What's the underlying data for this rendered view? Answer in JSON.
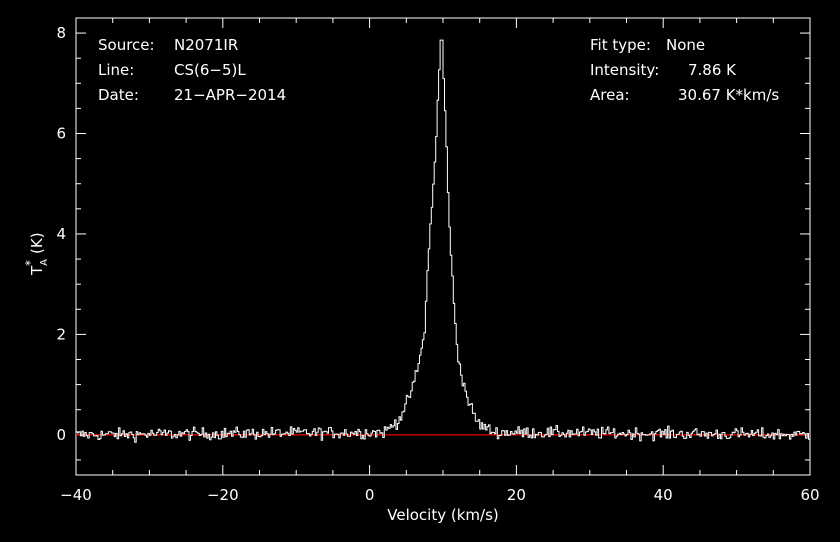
{
  "chart_data": {
    "type": "line",
    "xlabel": "Velocity (km/s)",
    "ylabel_main": "T",
    "ylabel_sup": "*",
    "ylabel_sub": "A",
    "ylabel_unit": "(K)",
    "xlim": [
      -40,
      60
    ],
    "ylim": [
      -0.8,
      8.3
    ],
    "xticks": [
      -40,
      -20,
      0,
      20,
      40,
      60
    ],
    "yticks": [
      0,
      2,
      4,
      6,
      8
    ],
    "grid": false,
    "background": "#000000",
    "line_color": "#ffffff",
    "baseline_color": "#ff0000",
    "baseline_value": 0,
    "info_left": [
      {
        "label": "Source:",
        "value": "N2071IR"
      },
      {
        "label": "Line:",
        "value": "CS(6−5)L"
      },
      {
        "label": "Date:",
        "value": "21−APR−2014"
      }
    ],
    "info_right": [
      {
        "label": "Fit type:",
        "value": "None"
      },
      {
        "label": "Intensity:",
        "value": "7.86 K"
      },
      {
        "label": "Area:",
        "value": "30.67 K*km/s"
      }
    ],
    "series": [
      {
        "channel_width": 0.2,
        "peak_velocity": 9.8,
        "peak_value": 7.86,
        "profile_points": [
          [
            -40,
            0
          ],
          [
            2.0,
            0.05
          ],
          [
            4.0,
            0.3
          ],
          [
            5.0,
            0.6
          ],
          [
            6.0,
            1.0
          ],
          [
            7.0,
            1.6
          ],
          [
            7.5,
            2.1
          ],
          [
            8.0,
            3.5
          ],
          [
            8.5,
            4.6
          ],
          [
            9.0,
            5.6
          ],
          [
            9.4,
            7.0
          ],
          [
            9.8,
            7.86
          ],
          [
            10.2,
            6.8
          ],
          [
            10.6,
            5.3
          ],
          [
            11.0,
            3.8
          ],
          [
            11.5,
            2.6
          ],
          [
            12.0,
            1.6
          ],
          [
            13.0,
            0.9
          ],
          [
            14.0,
            0.45
          ],
          [
            15.0,
            0.2
          ],
          [
            17.0,
            0.05
          ],
          [
            60,
            0
          ]
        ],
        "noise_rms": 0.06
      }
    ]
  }
}
